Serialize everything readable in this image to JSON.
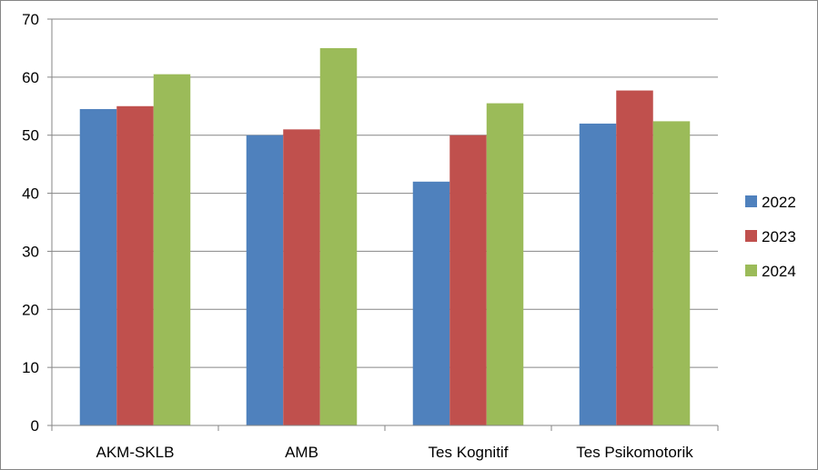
{
  "chart_data": {
    "type": "bar",
    "categories": [
      "AKM-SKLB",
      "AMB",
      "Tes Kognitif",
      "Tes Psikomotorik"
    ],
    "series": [
      {
        "name": "2022",
        "color": "#4F81BD",
        "values": [
          54.5,
          50,
          42,
          52
        ]
      },
      {
        "name": "2023",
        "color": "#C0504D",
        "values": [
          55,
          51,
          50,
          57.7
        ]
      },
      {
        "name": "2024",
        "color": "#9BBB59",
        "values": [
          60.5,
          65,
          55.5,
          52.4
        ]
      }
    ],
    "title": "",
    "xlabel": "",
    "ylabel": "",
    "ylim": [
      0,
      70
    ],
    "yticks": [
      0,
      10,
      20,
      30,
      40,
      50,
      60,
      70
    ],
    "grid": true,
    "legend_position": "right"
  }
}
